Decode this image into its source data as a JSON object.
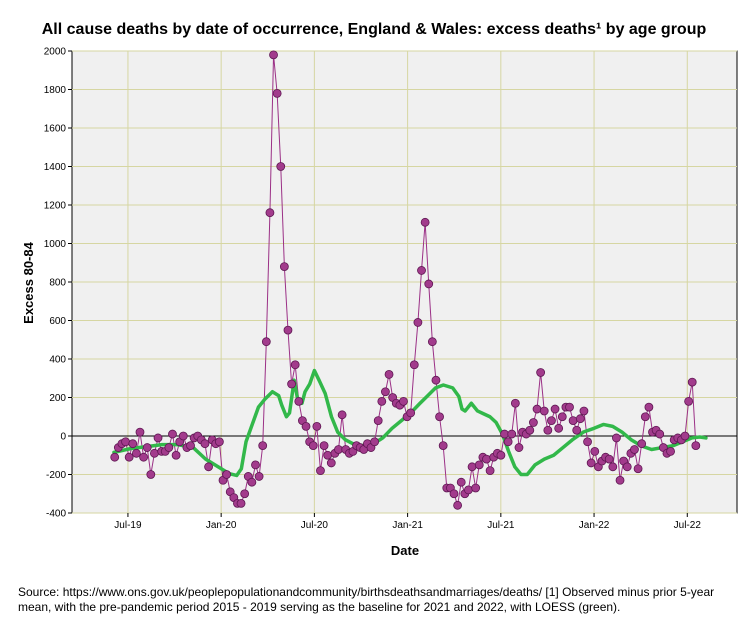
{
  "chart_data": {
    "type": "scatter",
    "title": "All cause deaths by date of occurrence, England & Wales: excess deaths¹ by age group",
    "xlabel": "Date",
    "ylabel": "Excess 80-84",
    "ylim": [
      -400,
      2000
    ],
    "yticks": [
      -400,
      -200,
      0,
      200,
      400,
      600,
      800,
      1000,
      1200,
      1400,
      1600,
      1800,
      2000
    ],
    "xlim": [
      -3.6,
      39.2
    ],
    "x_unit": "months since Jul-19",
    "xticks": [
      {
        "label": "Jul-19",
        "x": 0
      },
      {
        "label": "Jan-20",
        "x": 6
      },
      {
        "label": "Jul-20",
        "x": 12
      },
      {
        "label": "Jan-21",
        "x": 18
      },
      {
        "label": "Jul-21",
        "x": 24
      },
      {
        "label": "Jan-22",
        "x": 30
      },
      {
        "label": "Jul-22",
        "x": 36
      }
    ],
    "grid": true,
    "reference_line": 0,
    "series": [
      {
        "name": "Excess 80-84 (weekly)",
        "color": "#9b3086",
        "start_x": -0.85,
        "step_x": 0.2323,
        "values": [
          -110,
          -60,
          -40,
          -30,
          -110,
          -40,
          -90,
          20,
          -110,
          -60,
          -200,
          -90,
          -10,
          -80,
          -80,
          -60,
          10,
          -100,
          -30,
          0,
          -60,
          -50,
          -10,
          0,
          -20,
          -40,
          -160,
          -20,
          -40,
          -30,
          -230,
          -200,
          -290,
          -320,
          -350,
          -350,
          -300,
          -210,
          -240,
          -150,
          -210,
          -50,
          490,
          1160,
          1980,
          1780,
          1400,
          880,
          550,
          270,
          370,
          180,
          80,
          50,
          -30,
          -50,
          50,
          -180,
          -50,
          -100,
          -140,
          -90,
          -70,
          110,
          -70,
          -90,
          -80,
          -50,
          -60,
          -70,
          -40,
          -60,
          -30,
          80,
          180,
          230,
          320,
          200,
          170,
          160,
          180,
          100,
          120,
          370,
          590,
          860,
          1110,
          790,
          490,
          290,
          100,
          -50,
          -270,
          -270,
          -300,
          -360,
          -240,
          -300,
          -280,
          -160,
          -270,
          -150,
          -110,
          -120,
          -180,
          -110,
          -90,
          -100,
          10,
          -30,
          10,
          170,
          -60,
          20,
          10,
          30,
          70,
          140,
          330,
          130,
          30,
          80,
          140,
          40,
          100,
          150,
          150,
          80,
          30,
          90,
          130,
          -30,
          -140,
          -80,
          -160,
          -130,
          -110,
          -120,
          -160,
          -10,
          -230,
          -130,
          -160,
          -90,
          -70,
          -170,
          -40,
          100,
          150,
          20,
          30,
          10,
          -60,
          -90,
          -80,
          -20,
          -10,
          -20,
          0,
          180,
          280,
          -50
        ]
      },
      {
        "name": "LOESS",
        "color": "#32b84a",
        "points": [
          [
            -0.9,
            -85
          ],
          [
            0.2,
            -65
          ],
          [
            1.2,
            -55
          ],
          [
            2.2,
            -45
          ],
          [
            3.2,
            -45
          ],
          [
            4.2,
            -60
          ],
          [
            5.0,
            -120
          ],
          [
            5.8,
            -160
          ],
          [
            6.5,
            -195
          ],
          [
            7.0,
            -205
          ],
          [
            7.3,
            -170
          ],
          [
            7.6,
            -30
          ],
          [
            8.0,
            60
          ],
          [
            8.4,
            150
          ],
          [
            8.8,
            190
          ],
          [
            9.3,
            230
          ],
          [
            9.7,
            210
          ],
          [
            9.9,
            160
          ],
          [
            10.2,
            100
          ],
          [
            10.4,
            120
          ],
          [
            10.7,
            290
          ],
          [
            10.9,
            200
          ],
          [
            11.2,
            170
          ],
          [
            11.4,
            230
          ],
          [
            11.7,
            270
          ],
          [
            12.0,
            340
          ],
          [
            12.3,
            290
          ],
          [
            12.7,
            220
          ],
          [
            13.1,
            100
          ],
          [
            13.5,
            20
          ],
          [
            14.0,
            -20
          ],
          [
            14.6,
            -45
          ],
          [
            15.2,
            -50
          ],
          [
            15.8,
            -40
          ],
          [
            16.4,
            -10
          ],
          [
            17.0,
            40
          ],
          [
            17.6,
            80
          ],
          [
            18.2,
            120
          ],
          [
            18.8,
            170
          ],
          [
            19.3,
            210
          ],
          [
            19.8,
            250
          ],
          [
            20.3,
            265
          ],
          [
            20.9,
            250
          ],
          [
            21.3,
            205
          ],
          [
            21.5,
            140
          ],
          [
            21.7,
            130
          ],
          [
            22.1,
            170
          ],
          [
            22.5,
            130
          ],
          [
            22.9,
            115
          ],
          [
            23.3,
            100
          ],
          [
            23.7,
            70
          ],
          [
            24.1,
            10
          ],
          [
            24.5,
            -80
          ],
          [
            24.9,
            -160
          ],
          [
            25.3,
            -200
          ],
          [
            25.7,
            -200
          ],
          [
            26.2,
            -150
          ],
          [
            26.8,
            -120
          ],
          [
            27.4,
            -100
          ],
          [
            28.0,
            -60
          ],
          [
            28.6,
            -20
          ],
          [
            29.3,
            20
          ],
          [
            30.0,
            40
          ],
          [
            30.6,
            60
          ],
          [
            31.2,
            50
          ],
          [
            31.8,
            20
          ],
          [
            32.4,
            -20
          ],
          [
            33.0,
            -50
          ],
          [
            33.7,
            -70
          ],
          [
            34.4,
            -60
          ],
          [
            35.1,
            -50
          ],
          [
            35.7,
            -30
          ],
          [
            36.3,
            -10
          ],
          [
            36.8,
            -5
          ],
          [
            37.2,
            -10
          ]
        ]
      }
    ]
  },
  "footnote": "Source: https://www.ons.gov.uk/peoplepopulationandcommunity/birthsdeathsandmarriages/deaths/  [1] Observed minus prior 5-year mean, with the pre-pandemic period 2015 - 2019 serving as the baseline for 2021 and 2022, with LOESS (green)."
}
